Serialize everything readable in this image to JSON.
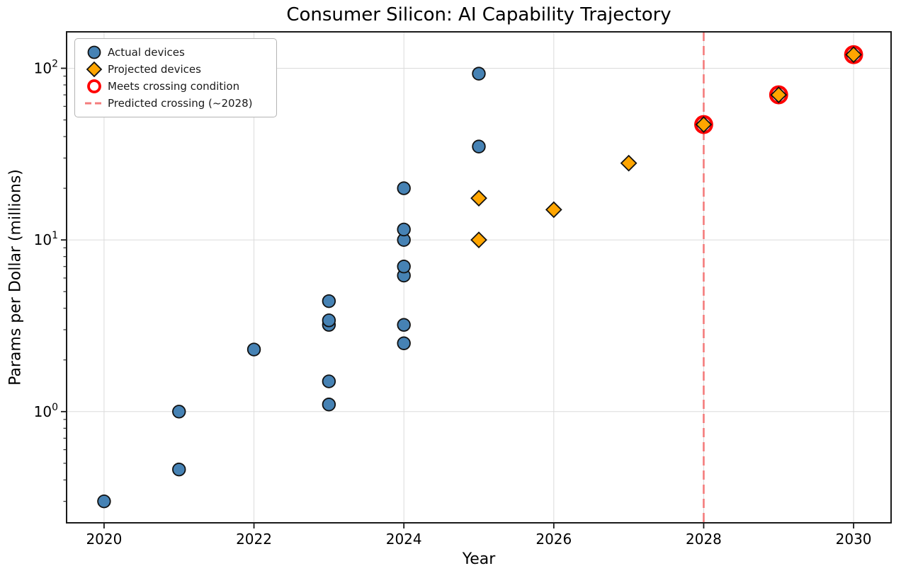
{
  "chart_data": {
    "type": "scatter",
    "title": "Consumer Silicon: AI Capability Trajectory",
    "xlabel": "Year",
    "ylabel": "Params per Dollar (millions)",
    "x_axis": {
      "min": 2019.5,
      "max": 2030.5,
      "ticks": [
        2020,
        2022,
        2024,
        2026,
        2028,
        2030
      ]
    },
    "y_axis": {
      "scale": "log",
      "min": 0.225,
      "max": 163,
      "major_ticks": [
        {
          "value": 1,
          "base": "10",
          "exp": "0"
        },
        {
          "value": 10,
          "base": "10",
          "exp": "1"
        },
        {
          "value": 100,
          "base": "10",
          "exp": "2"
        }
      ]
    },
    "grid": true,
    "legend_position": "upper-left",
    "series": [
      {
        "name": "Actual devices",
        "marker": "circle",
        "color": "#4682B4",
        "points": [
          {
            "year": 2020,
            "value": 0.3
          },
          {
            "year": 2021,
            "value": 0.46
          },
          {
            "year": 2021,
            "value": 1.0
          },
          {
            "year": 2022,
            "value": 2.3
          },
          {
            "year": 2023,
            "value": 1.1
          },
          {
            "year": 2023,
            "value": 1.5
          },
          {
            "year": 2023,
            "value": 3.2
          },
          {
            "year": 2023,
            "value": 3.4
          },
          {
            "year": 2023,
            "value": 4.4
          },
          {
            "year": 2024,
            "value": 2.5
          },
          {
            "year": 2024,
            "value": 3.2
          },
          {
            "year": 2024,
            "value": 6.2
          },
          {
            "year": 2024,
            "value": 7.0
          },
          {
            "year": 2024,
            "value": 10
          },
          {
            "year": 2024,
            "value": 11.5
          },
          {
            "year": 2024,
            "value": 20
          },
          {
            "year": 2025,
            "value": 35
          },
          {
            "year": 2025,
            "value": 93
          }
        ]
      },
      {
        "name": "Projected devices",
        "marker": "diamond",
        "color": "#FFA500",
        "points": [
          {
            "year": 2025,
            "value": 10
          },
          {
            "year": 2025,
            "value": 17.5
          },
          {
            "year": 2026,
            "value": 15
          },
          {
            "year": 2027,
            "value": 28
          },
          {
            "year": 2028,
            "value": 47,
            "crossing": true
          },
          {
            "year": 2029,
            "value": 70,
            "crossing": true
          },
          {
            "year": 2030,
            "value": 120,
            "crossing": true
          }
        ]
      }
    ],
    "crossing_line": {
      "year": 2028,
      "label": "Predicted crossing (~2028)",
      "color": "#F47C7C",
      "style": "dashed"
    }
  },
  "legend": {
    "items": [
      {
        "id": "actual",
        "label": "Actual devices"
      },
      {
        "id": "projected",
        "label": "Projected devices"
      },
      {
        "id": "crossing",
        "label": "Meets crossing condition"
      },
      {
        "id": "crossing-line",
        "label": "Predicted crossing (~2028)"
      }
    ]
  },
  "colors": {
    "actual": "#4682B4",
    "projected": "#FFA500",
    "crossing_ring": "#FF0000",
    "crossing_line": "#F47C7C",
    "marker_edge": "#111111",
    "grid": "#DBDBDB",
    "spine": "#1A1A1A",
    "text": "#000000"
  }
}
